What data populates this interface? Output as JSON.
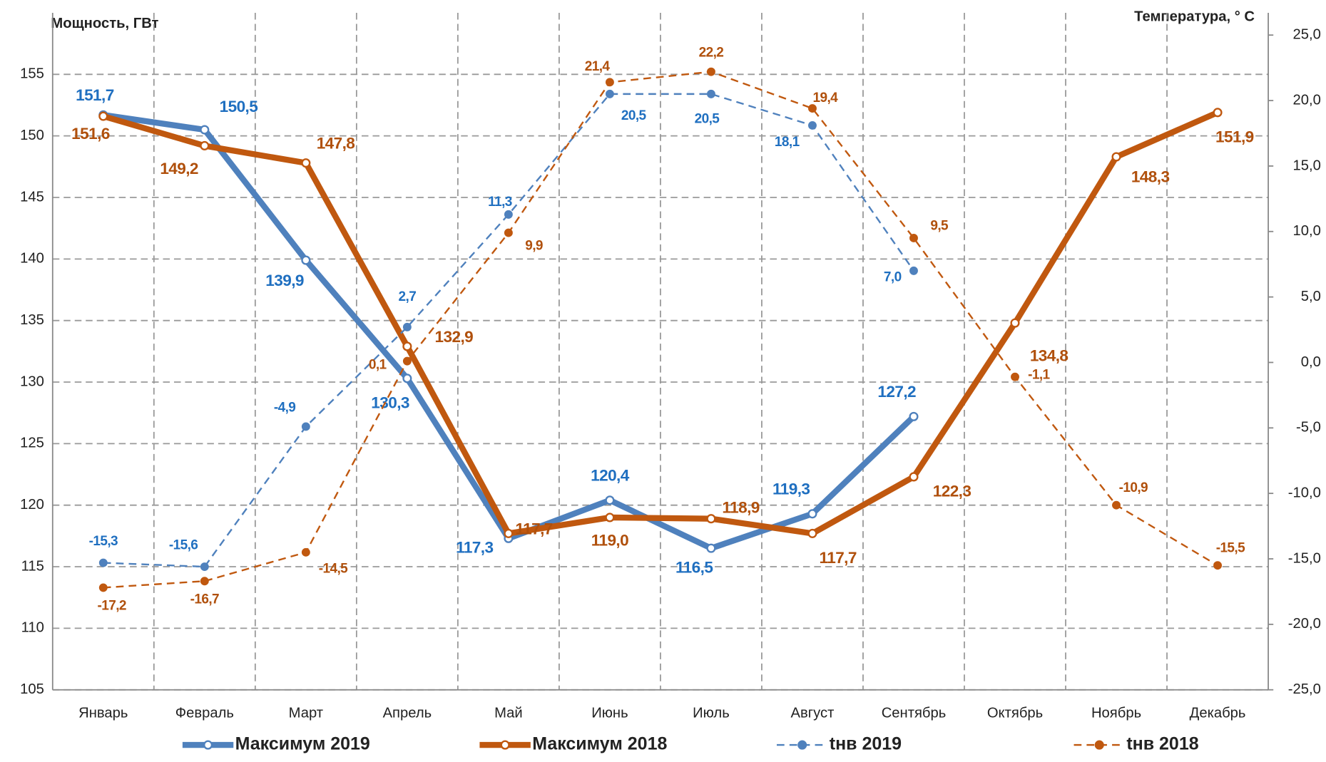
{
  "chart_data": {
    "type": "line",
    "y_axis_title": "Мощность, ГВт",
    "y2_axis_title": "Температура, ° С",
    "categories": [
      "Январь",
      "Февраль",
      "Март",
      "Апрель",
      "Май",
      "Июнь",
      "Июль",
      "Август",
      "Сентябрь",
      "Октябрь",
      "Ноябрь",
      "Декабрь"
    ],
    "ylim": [
      105,
      160
    ],
    "yticks": [
      105,
      110,
      115,
      120,
      125,
      130,
      135,
      140,
      145,
      150,
      155
    ],
    "y2lim": [
      -25,
      26.7
    ],
    "y2ticks": [
      {
        "value": -25,
        "label": "-25,0"
      },
      {
        "value": -20,
        "label": "-20,0"
      },
      {
        "value": -15,
        "label": "-15,0"
      },
      {
        "value": -10,
        "label": "-10,0"
      },
      {
        "value": -5,
        "label": "-5,0"
      },
      {
        "value": 0,
        "label": "0,0"
      },
      {
        "value": 5,
        "label": "5,0"
      },
      {
        "value": 10,
        "label": "10,0"
      },
      {
        "value": 15,
        "label": "15,0"
      },
      {
        "value": 20,
        "label": "20,0"
      },
      {
        "value": 25,
        "label": "25,0"
      }
    ],
    "grid": true,
    "series": [
      {
        "name": "Максимум 2019",
        "color": "#4f81bd",
        "label_color": "#1f6fc0",
        "style": "solid",
        "values": [
          151.7,
          150.5,
          139.9,
          130.3,
          117.3,
          120.4,
          116.5,
          119.3,
          127.2,
          null,
          null,
          null
        ],
        "value_labels": [
          "151,7",
          "150,5",
          "139,9",
          "130,3",
          "117,3",
          "120,4",
          "116,5",
          "119,3",
          "127,2",
          null,
          null,
          null
        ]
      },
      {
        "name": "Максимум 2018",
        "color": "#c0580f",
        "label_color": "#b0500c",
        "style": "solid",
        "values": [
          151.6,
          149.2,
          147.8,
          132.9,
          117.7,
          119.0,
          118.9,
          117.7,
          122.3,
          134.8,
          148.3,
          151.9
        ],
        "value_labels": [
          "151,6",
          "149,2",
          "147,8",
          "132,9",
          "117,7",
          "119,0",
          "118,9",
          "117,7",
          "122,3",
          "134,8",
          "148,3",
          "151,9"
        ]
      },
      {
        "name": "tнв 2019",
        "color": "#4f81bd",
        "label_color": "#1f6fc0",
        "style": "dashed",
        "axis": "y2",
        "values": [
          -15.3,
          -15.6,
          -4.9,
          2.7,
          11.3,
          20.5,
          20.5,
          18.1,
          7.0,
          null,
          null,
          null
        ],
        "value_labels": [
          "-15,3",
          "-15,6",
          "-4,9",
          "2,7",
          "11,3",
          "20,5",
          "20,5",
          "18,1",
          "7,0",
          null,
          null,
          null
        ]
      },
      {
        "name": "tнв 2018",
        "color": "#c0580f",
        "label_color": "#b0500c",
        "style": "dashed",
        "axis": "y2",
        "values": [
          -17.2,
          -16.7,
          -14.5,
          0.1,
          9.9,
          21.4,
          22.2,
          19.4,
          9.5,
          -1.1,
          -10.9,
          -15.5
        ],
        "value_labels": [
          "-17,2",
          "-16,7",
          "-14,5",
          "0,1",
          "9,9",
          "21,4",
          "22,2",
          "19,4",
          "9,5",
          "-1,1",
          "-10,9",
          "-15,5"
        ]
      }
    ]
  }
}
